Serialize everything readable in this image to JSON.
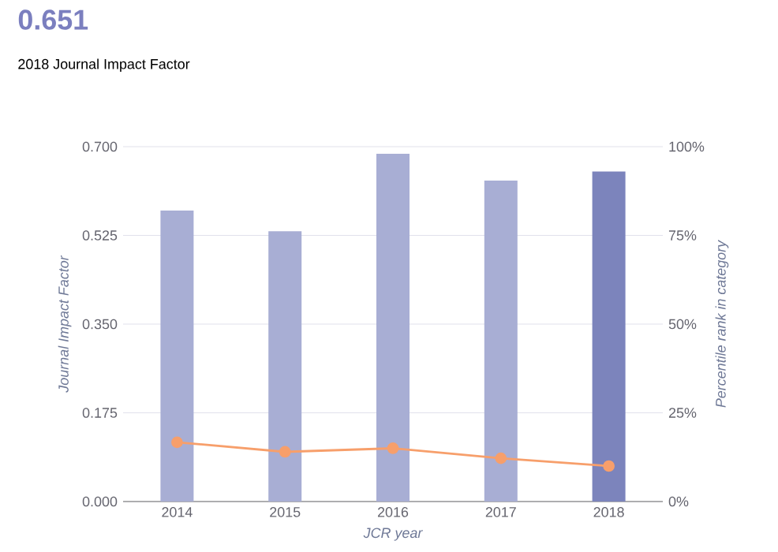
{
  "chart_data": {
    "type": "bar",
    "title": "0.651",
    "subtitle": "2018 Journal Impact Factor",
    "xlabel": "JCR year",
    "ylabel": "Journal Impact Factor",
    "y2label": "Percentile rank in category",
    "categories": [
      "2014",
      "2015",
      "2016",
      "2017",
      "2018"
    ],
    "series": [
      {
        "colors": [
          "#a8aed4",
          "#a8aed4",
          "#a8aed4",
          "#a8aed4",
          "#7c84bc"
        ],
        "values": [
          0.574,
          0.533,
          0.686,
          0.633,
          0.651
        ]
      },
      {
        "type": "line",
        "axis": "y2",
        "color": "#f79f6b",
        "marker": "circle",
        "values": [
          16.7,
          14.0,
          15.0,
          12.2,
          10.0
        ]
      }
    ],
    "ylim": [
      0,
      0.7
    ],
    "yticks": [
      {
        "value": 0,
        "label": "0.000"
      },
      {
        "value": 0.175,
        "label": "0.175"
      },
      {
        "value": 0.35,
        "label": "0.350"
      },
      {
        "value": 0.525,
        "label": "0.525"
      },
      {
        "value": 0.7,
        "label": "0.700"
      }
    ],
    "y2lim": [
      0,
      100
    ],
    "y2ticks": [
      {
        "value": 0,
        "label": "0%"
      },
      {
        "value": 25,
        "label": "25%"
      },
      {
        "value": 50,
        "label": "50%"
      },
      {
        "value": 75,
        "label": "75%"
      },
      {
        "value": 100,
        "label": "100%"
      }
    ],
    "grid": "y"
  }
}
